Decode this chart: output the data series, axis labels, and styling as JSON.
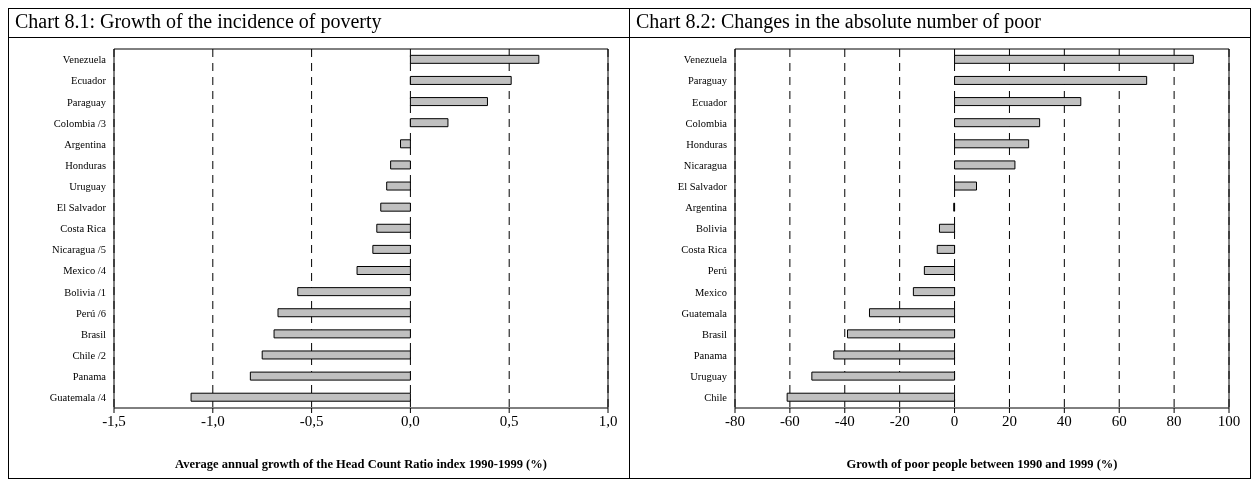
{
  "chart_data": [
    {
      "type": "bar",
      "orientation": "horizontal",
      "title": "Chart 8.1: Growth of the incidence of poverty",
      "xlabel": "Average annual growth of the Head Count Ratio index 1990-1999 (%)",
      "categories": [
        "Venezuela",
        "Ecuador",
        "Paraguay",
        "Colombia /3",
        "Argentina",
        "Honduras",
        "Uruguay",
        "El Salvador",
        "Costa Rica",
        "Nicaragua /5",
        "Mexico /4",
        "Bolivia /1",
        "Perú /6",
        "Brasil",
        "Chile /2",
        "Panama",
        "Guatemala /4"
      ],
      "values": [
        0.65,
        0.51,
        0.39,
        0.19,
        -0.05,
        -0.1,
        -0.12,
        -0.15,
        -0.17,
        -0.19,
        -0.27,
        -0.57,
        -0.67,
        -0.69,
        -0.75,
        -0.81,
        -1.11
      ],
      "color": "#c0c0c0",
      "xlim": [
        -1.5,
        1.0
      ],
      "xticks": [
        {
          "value": -1.5,
          "label": "-1,5"
        },
        {
          "value": -1.0,
          "label": "-1,0"
        },
        {
          "value": -0.5,
          "label": "-0,5"
        },
        {
          "value": 0,
          "label": "0,0"
        },
        {
          "value": 0.5,
          "label": "0,5"
        },
        {
          "value": 1.0,
          "label": "1,0"
        }
      ],
      "grid": "x",
      "line_style": "dashed"
    },
    {
      "type": "bar",
      "orientation": "horizontal",
      "title": "Chart 8.2: Changes in the absolute number of poor",
      "xlabel": "Growth of poor people between 1990 and 1999 (%)",
      "categories": [
        "Venezuela",
        "Paraguay",
        "Ecuador",
        "Colombia",
        "Honduras",
        "Nicaragua",
        "El Salvador",
        "Argentina",
        "Bolivia",
        "Costa Rica",
        "Perú",
        "Mexico",
        "Guatemala",
        "Brasil",
        "Panama",
        "Uruguay",
        "Chile"
      ],
      "values": [
        87,
        70,
        46,
        31,
        27,
        22,
        8,
        -0.3,
        -5.5,
        -6.3,
        -11,
        -15,
        -31,
        -39,
        -44,
        -52,
        -61
      ],
      "color": "#c0c0c0",
      "xlim": [
        -80,
        100
      ],
      "xticks": [
        -80,
        -60,
        -40,
        -20,
        0,
        20,
        40,
        60,
        80,
        100
      ],
      "grid": "x",
      "line_style": "dashed"
    }
  ]
}
